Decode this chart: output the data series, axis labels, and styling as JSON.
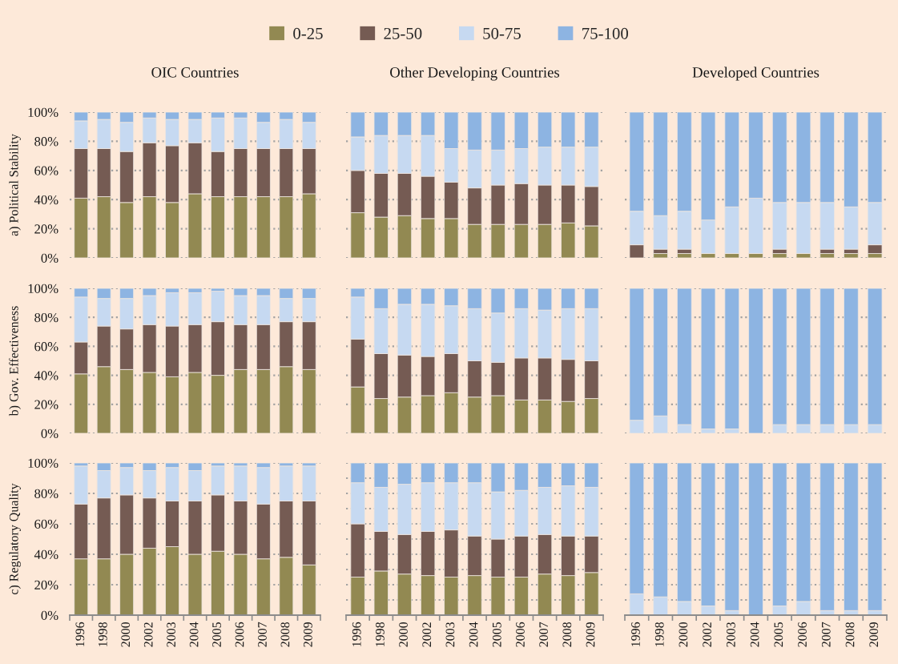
{
  "chart_data": [
    {
      "type": "bar",
      "stacked": true,
      "title": "OIC Countries",
      "ylabel": "a) Political Stability",
      "legend": "top",
      "grid": "y",
      "tick_labels": "y",
      "categories": [
        "1996",
        "1998",
        "2000",
        "2002",
        "2003",
        "2004",
        "2005",
        "2006",
        "2007",
        "2008",
        "2009"
      ],
      "ylim": [
        0,
        100
      ],
      "yticks": [
        {
          "value": 0,
          "label": "0%"
        },
        {
          "value": 20,
          "label": "20%"
        },
        {
          "value": 40,
          "label": "40%"
        },
        {
          "value": 60,
          "label": "60%"
        },
        {
          "value": 80,
          "label": "80%"
        },
        {
          "value": 100,
          "label": "100%"
        }
      ],
      "series": [
        {
          "name": "0-25",
          "color": "#928952",
          "values": [
            41,
            42,
            38,
            42,
            38,
            44,
            42,
            42,
            42,
            42,
            44
          ]
        },
        {
          "name": "25-50",
          "color": "#755b53",
          "values": [
            34,
            33,
            35,
            37,
            39,
            35,
            31,
            33,
            33,
            33,
            31
          ]
        },
        {
          "name": "50-75",
          "color": "#c6d9f1",
          "values": [
            19,
            20,
            20,
            17,
            18,
            16,
            23,
            21,
            18,
            20,
            18
          ]
        },
        {
          "name": "75-100",
          "color": "#8db4e2",
          "values": [
            6,
            5,
            7,
            4,
            5,
            5,
            4,
            4,
            7,
            5,
            7
          ]
        }
      ]
    },
    {
      "type": "bar",
      "stacked": true,
      "title": "Other Developing Countries",
      "grid": "y",
      "tick_labels": false,
      "categories": [
        "1996",
        "1998",
        "2000",
        "2002",
        "2003",
        "2004",
        "2005",
        "2006",
        "2007",
        "2008",
        "2009"
      ],
      "ylim": [
        0,
        100
      ],
      "yticks": [
        {
          "value": 0,
          "label": null
        },
        {
          "value": 20,
          "label": null
        },
        {
          "value": 40,
          "label": null
        },
        {
          "value": 60,
          "label": null
        },
        {
          "value": 80,
          "label": null
        },
        {
          "value": 100,
          "label": null
        }
      ],
      "series": [
        {
          "color": "#928952",
          "values": [
            31,
            28,
            29,
            27,
            27,
            23,
            23,
            23,
            23,
            24,
            22
          ]
        },
        {
          "color": "#755b53",
          "values": [
            29,
            30,
            29,
            29,
            25,
            25,
            27,
            28,
            27,
            26,
            27
          ]
        },
        {
          "color": "#c6d9f1",
          "values": [
            23,
            26,
            26,
            28,
            23,
            26,
            24,
            24,
            26,
            26,
            27
          ]
        },
        {
          "color": "#8db4e2",
          "values": [
            17,
            16,
            16,
            16,
            25,
            26,
            26,
            25,
            24,
            24,
            24
          ]
        }
      ]
    },
    {
      "type": "bar",
      "stacked": true,
      "title": "Developed Countries",
      "grid": "y",
      "tick_labels": false,
      "categories": [
        "1996",
        "1998",
        "2000",
        "2002",
        "2003",
        "2004",
        "2005",
        "2006",
        "2007",
        "2008",
        "2009"
      ],
      "ylim": [
        0,
        100
      ],
      "yticks": [
        {
          "value": 0,
          "label": null
        },
        {
          "value": 20,
          "label": null
        },
        {
          "value": 40,
          "label": null
        },
        {
          "value": 60,
          "label": null
        },
        {
          "value": 80,
          "label": null
        },
        {
          "value": 100,
          "label": null
        }
      ],
      "series": [
        {
          "color": "#928952",
          "values": [
            0,
            3,
            3,
            3,
            3,
            3,
            3,
            3,
            3,
            3,
            3
          ]
        },
        {
          "color": "#755b53",
          "values": [
            9,
            3,
            3,
            0,
            0,
            0,
            3,
            0,
            3,
            3,
            6
          ]
        },
        {
          "color": "#c6d9f1",
          "values": [
            23,
            23,
            26,
            23,
            32,
            38,
            32,
            35,
            32,
            29,
            29
          ]
        },
        {
          "color": "#8db4e2",
          "values": [
            68,
            71,
            68,
            74,
            65,
            59,
            62,
            62,
            62,
            65,
            62
          ]
        }
      ]
    },
    {
      "type": "bar",
      "stacked": true,
      "ylabel": "b) Gov. Effectiveness",
      "grid": "y",
      "tick_labels": "y",
      "categories": [
        "1996",
        "1998",
        "2000",
        "2002",
        "2003",
        "2004",
        "2005",
        "2006",
        "2007",
        "2008",
        "2009"
      ],
      "ylim": [
        0,
        100
      ],
      "yticks": [
        {
          "value": 0,
          "label": "0%"
        },
        {
          "value": 20,
          "label": "20%"
        },
        {
          "value": 40,
          "label": "40%"
        },
        {
          "value": 60,
          "label": "60%"
        },
        {
          "value": 80,
          "label": "80%"
        },
        {
          "value": 100,
          "label": "100%"
        }
      ],
      "series": [
        {
          "color": "#928952",
          "values": [
            41,
            46,
            44,
            42,
            39,
            42,
            40,
            44,
            44,
            46,
            44
          ]
        },
        {
          "color": "#755b53",
          "values": [
            22,
            28,
            28,
            33,
            35,
            33,
            37,
            31,
            31,
            31,
            33
          ]
        },
        {
          "color": "#c6d9f1",
          "values": [
            31,
            19,
            21,
            20,
            23,
            22,
            21,
            20,
            20,
            16,
            16
          ]
        },
        {
          "color": "#8db4e2",
          "values": [
            6,
            7,
            7,
            5,
            3,
            3,
            2,
            5,
            5,
            7,
            7
          ]
        }
      ]
    },
    {
      "type": "bar",
      "stacked": true,
      "grid": "y",
      "tick_labels": false,
      "categories": [
        "1996",
        "1998",
        "2000",
        "2002",
        "2003",
        "2004",
        "2005",
        "2006",
        "2007",
        "2008",
        "2009"
      ],
      "ylim": [
        0,
        100
      ],
      "yticks": [
        {
          "value": 0,
          "label": null
        },
        {
          "value": 20,
          "label": null
        },
        {
          "value": 40,
          "label": null
        },
        {
          "value": 60,
          "label": null
        },
        {
          "value": 80,
          "label": null
        },
        {
          "value": 100,
          "label": null
        }
      ],
      "series": [
        {
          "color": "#928952",
          "values": [
            32,
            24,
            25,
            26,
            28,
            25,
            26,
            23,
            23,
            22,
            24
          ]
        },
        {
          "color": "#755b53",
          "values": [
            33,
            31,
            29,
            27,
            27,
            25,
            23,
            29,
            29,
            29,
            26
          ]
        },
        {
          "color": "#c6d9f1",
          "values": [
            29,
            31,
            35,
            36,
            33,
            36,
            34,
            34,
            33,
            35,
            36
          ]
        },
        {
          "color": "#8db4e2",
          "values": [
            6,
            14,
            11,
            11,
            12,
            14,
            17,
            14,
            15,
            14,
            14
          ]
        }
      ]
    },
    {
      "type": "bar",
      "stacked": true,
      "grid": "y",
      "tick_labels": false,
      "categories": [
        "1996",
        "1998",
        "2000",
        "2002",
        "2003",
        "2004",
        "2005",
        "2006",
        "2007",
        "2008",
        "2009"
      ],
      "ylim": [
        0,
        100
      ],
      "yticks": [
        {
          "value": 0,
          "label": null
        },
        {
          "value": 20,
          "label": null
        },
        {
          "value": 40,
          "label": null
        },
        {
          "value": 60,
          "label": null
        },
        {
          "value": 80,
          "label": null
        },
        {
          "value": 100,
          "label": null
        }
      ],
      "series": [
        {
          "color": "#928952",
          "values": [
            0,
            0,
            0,
            0,
            0,
            0,
            0,
            0,
            0,
            0,
            0
          ]
        },
        {
          "color": "#755b53",
          "values": [
            0,
            0,
            0,
            0,
            0,
            0,
            0,
            0,
            0,
            0,
            0
          ]
        },
        {
          "color": "#c6d9f1",
          "values": [
            9,
            12,
            6,
            3,
            3,
            0,
            6,
            6,
            6,
            6,
            6
          ]
        },
        {
          "color": "#8db4e2",
          "values": [
            91,
            88,
            94,
            97,
            97,
            100,
            94,
            94,
            94,
            94,
            94
          ]
        }
      ]
    },
    {
      "type": "bar",
      "stacked": true,
      "ylabel": "c) Regulatory Quality",
      "grid": "y",
      "categories": [
        "1996",
        "1998",
        "2000",
        "2002",
        "2003",
        "2004",
        "2005",
        "2006",
        "2007",
        "2008",
        "2009"
      ],
      "ylim": [
        0,
        100
      ],
      "yticks": [
        {
          "value": 0,
          "label": "0%"
        },
        {
          "value": 20,
          "label": "20%"
        },
        {
          "value": 40,
          "label": "40%"
        },
        {
          "value": 60,
          "label": "60%"
        },
        {
          "value": 80,
          "label": "80%"
        },
        {
          "value": 100,
          "label": "100%"
        }
      ],
      "series": [
        {
          "color": "#928952",
          "values": [
            37,
            37,
            40,
            44,
            45,
            40,
            42,
            40,
            37,
            38,
            33
          ]
        },
        {
          "color": "#755b53",
          "values": [
            36,
            40,
            39,
            33,
            30,
            35,
            37,
            35,
            36,
            37,
            42
          ]
        },
        {
          "color": "#c6d9f1",
          "values": [
            25,
            18,
            18,
            18,
            22,
            20,
            19,
            23,
            24,
            23,
            23
          ]
        },
        {
          "color": "#8db4e2",
          "values": [
            2,
            5,
            3,
            5,
            3,
            5,
            2,
            2,
            3,
            2,
            2
          ]
        }
      ]
    },
    {
      "type": "bar",
      "stacked": true,
      "grid": "y",
      "tick_labels": "x",
      "categories": [
        "1996",
        "1998",
        "2000",
        "2002",
        "2003",
        "2004",
        "2005",
        "2006",
        "2007",
        "2008",
        "2009"
      ],
      "ylim": [
        0,
        100
      ],
      "yticks": [
        {
          "value": 0,
          "label": null
        },
        {
          "value": 10,
          "label": null
        },
        {
          "value": 20,
          "label": null
        },
        {
          "value": 30,
          "label": null
        },
        {
          "value": 40,
          "label": null
        },
        {
          "value": 50,
          "label": null
        },
        {
          "value": 60,
          "label": null
        },
        {
          "value": 70,
          "label": null
        },
        {
          "value": 80,
          "label": null
        },
        {
          "value": 90,
          "label": null
        },
        {
          "value": 100,
          "label": null
        }
      ],
      "series": [
        {
          "color": "#928952",
          "values": [
            25,
            29,
            27,
            26,
            25,
            26,
            25,
            25,
            27,
            26,
            28
          ]
        },
        {
          "color": "#755b53",
          "values": [
            35,
            26,
            26,
            29,
            31,
            26,
            25,
            27,
            26,
            26,
            24
          ]
        },
        {
          "color": "#c6d9f1",
          "values": [
            27,
            29,
            33,
            32,
            31,
            35,
            31,
            30,
            31,
            33,
            32
          ]
        },
        {
          "color": "#8db4e2",
          "values": [
            13,
            16,
            14,
            13,
            13,
            13,
            19,
            18,
            16,
            15,
            16
          ]
        }
      ]
    },
    {
      "type": "bar",
      "stacked": true,
      "grid": "y",
      "tick_labels": "x",
      "categories": [
        "1996",
        "1998",
        "2000",
        "2002",
        "2003",
        "2004",
        "2005",
        "2006",
        "2007",
        "2008",
        "2009"
      ],
      "ylim": [
        0,
        100
      ],
      "yticks": [
        {
          "value": 0,
          "label": null
        },
        {
          "value": 10,
          "label": null
        },
        {
          "value": 20,
          "label": null
        },
        {
          "value": 30,
          "label": null
        },
        {
          "value": 40,
          "label": null
        },
        {
          "value": 50,
          "label": null
        },
        {
          "value": 60,
          "label": null
        },
        {
          "value": 70,
          "label": null
        },
        {
          "value": 80,
          "label": null
        },
        {
          "value": 90,
          "label": null
        },
        {
          "value": 100,
          "label": null
        }
      ],
      "series": [
        {
          "color": "#928952",
          "values": [
            0,
            0,
            0,
            0,
            0,
            0,
            0,
            0,
            0,
            0,
            0
          ]
        },
        {
          "color": "#755b53",
          "values": [
            0,
            0,
            0,
            0,
            0,
            0,
            0,
            0,
            0,
            0,
            0
          ]
        },
        {
          "color": "#c6d9f1",
          "values": [
            14,
            12,
            9,
            6,
            3,
            0,
            6,
            9,
            3,
            3,
            3
          ]
        },
        {
          "color": "#8db4e2",
          "values": [
            86,
            88,
            91,
            94,
            97,
            100,
            94,
            91,
            97,
            97,
            97
          ]
        }
      ]
    }
  ]
}
